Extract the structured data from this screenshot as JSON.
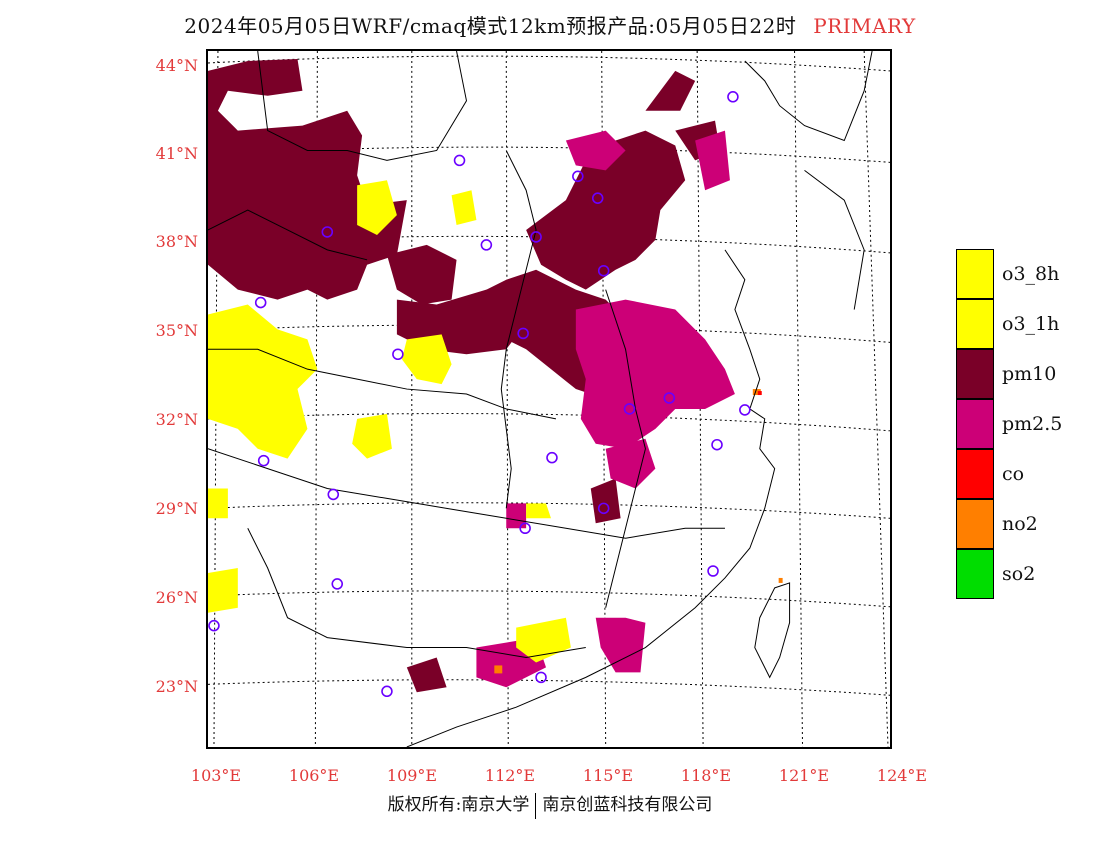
{
  "title": {
    "text": "2024年05月05日WRF/cmaq模式12km预报产品:05月05日22时",
    "primary": "PRIMARY"
  },
  "axes": {
    "lat_labels": [
      "44°N",
      "41°N",
      "38°N",
      "35°N",
      "32°N",
      "29°N",
      "26°N",
      "23°N"
    ],
    "lon_labels": [
      "103°E",
      "106°E",
      "109°E",
      "112°E",
      "115°E",
      "118°E",
      "121°E",
      "124°E"
    ]
  },
  "legend": {
    "items": [
      {
        "label": "o3_8h",
        "color": "#ffff00"
      },
      {
        "label": "o3_1h",
        "color": "#ffff00"
      },
      {
        "label": "pm10",
        "color": "#7a0028"
      },
      {
        "label": "pm2.5",
        "color": "#cc0077"
      },
      {
        "label": "co",
        "color": "#ff0000"
      },
      {
        "label": "no2",
        "color": "#ff7f00"
      },
      {
        "label": "so2",
        "color": "#00dd00"
      }
    ]
  },
  "footer": {
    "left": "版权所有:南京大学",
    "right": "南京创蓝科技有限公司"
  }
}
